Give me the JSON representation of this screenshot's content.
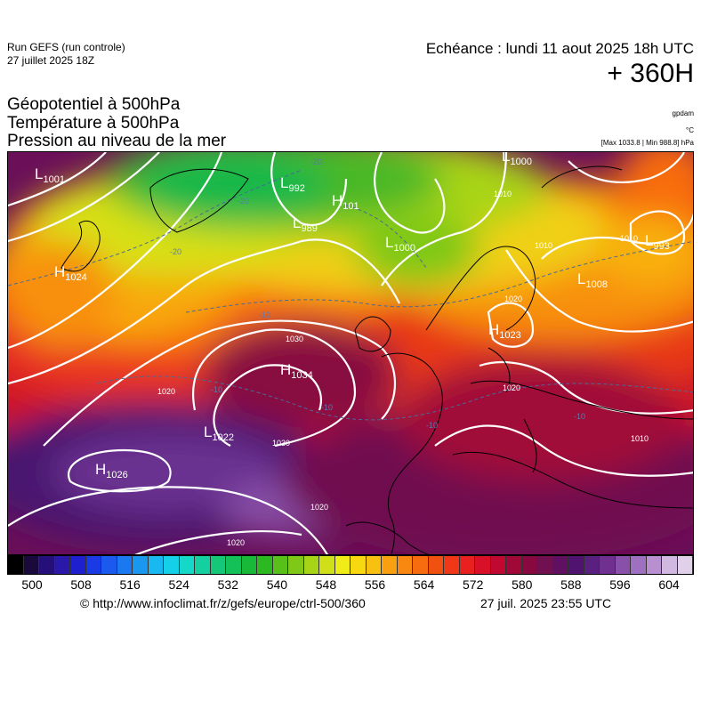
{
  "header": {
    "run_label": "Run GEFS (run controle)",
    "run_date": "27 juillet 2025 18Z",
    "echeance": "Echéance : lundi 11 aout 2025 18h UTC",
    "lead": "+ 360H"
  },
  "params": {
    "line1": "Géopotentiel à 500hPa",
    "line2": "Température à 500hPa",
    "line3": "Pression au niveau de la mer"
  },
  "units": {
    "gpdam": "gpdam",
    "celsius": "°C",
    "maxmin": "[Max 1033.8 | Min 988.8] hPa"
  },
  "map": {
    "pressure_centers": [
      {
        "type": "L",
        "value": "1001"
      },
      {
        "type": "H",
        "value": "1024"
      },
      {
        "type": "L",
        "value": "992"
      },
      {
        "type": "L",
        "value": "989"
      },
      {
        "type": "H",
        "value": "101"
      },
      {
        "type": "L",
        "value": "1000"
      },
      {
        "type": "L",
        "value": "1000"
      },
      {
        "type": "L",
        "value": "993"
      },
      {
        "type": "L",
        "value": "1008"
      },
      {
        "type": "H",
        "value": "1023"
      },
      {
        "type": "H",
        "value": "1034"
      },
      {
        "type": "L",
        "value": "1022"
      },
      {
        "type": "H",
        "value": "1026"
      }
    ],
    "isobar_labels": [
      "1030",
      "1030",
      "1020",
      "1020",
      "1020",
      "1020",
      "1020",
      "1010",
      "1010",
      "1010",
      "1010"
    ],
    "isotherm_labels": [
      "-20",
      "-20",
      "-20",
      "-10",
      "-10",
      "-10",
      "-10",
      "-10"
    ]
  },
  "colorbar": {
    "colors": [
      "#000000",
      "#1a0a3c",
      "#241078",
      "#2a18a8",
      "#1e20d0",
      "#1a3ae6",
      "#1a5aee",
      "#1a78f0",
      "#1a98f0",
      "#1ab8f0",
      "#14d0e8",
      "#14d8c8",
      "#14d0a0",
      "#14c878",
      "#14c058",
      "#18b838",
      "#2cb820",
      "#58c018",
      "#80c818",
      "#a8d418",
      "#d0e018",
      "#f0ec18",
      "#f8d810",
      "#f8c010",
      "#f8a010",
      "#f88810",
      "#f86c10",
      "#f05010",
      "#f03818",
      "#e82020",
      "#d81028",
      "#c00830",
      "#a00838",
      "#880840",
      "#701050",
      "#601060",
      "#501470",
      "#5a2080",
      "#703090",
      "#8850a8",
      "#a070c0",
      "#b890d0",
      "#d0b8e0",
      "#e0d0ea"
    ],
    "ticks": [
      "500",
      "508",
      "516",
      "524",
      "532",
      "540",
      "548",
      "556",
      "564",
      "572",
      "580",
      "588",
      "596",
      "604"
    ]
  },
  "footer": {
    "copyright": "© http://www.infoclimat.fr/z/gefs/europe/ctrl-500/360",
    "generated": "27 juil. 2025 23:55 UTC"
  }
}
